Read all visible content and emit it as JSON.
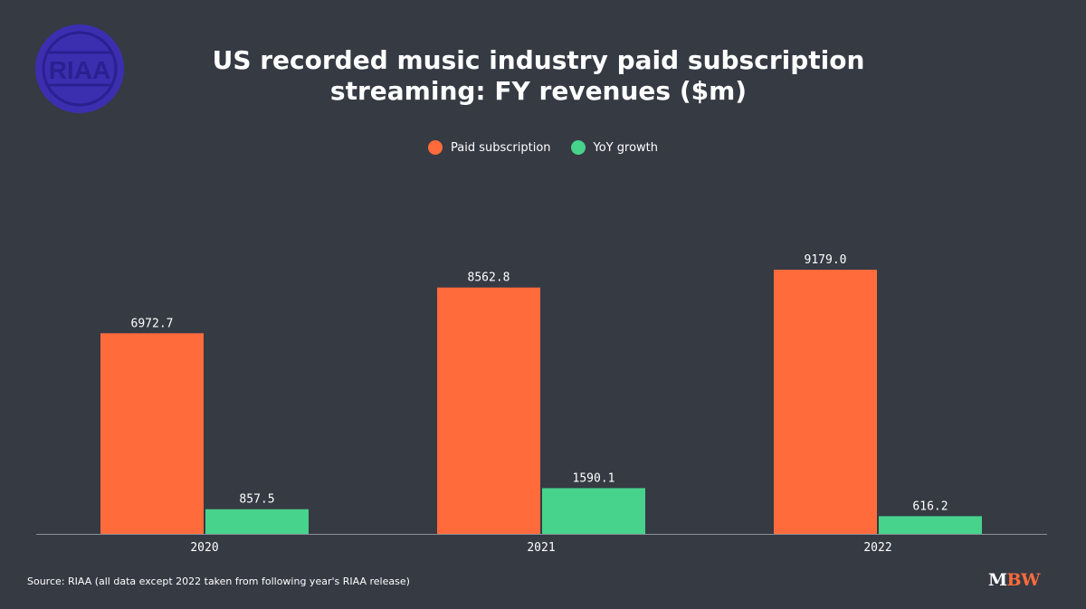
{
  "logo": {
    "text": "RIAA",
    "color": "#3b2fb0"
  },
  "title": "US recorded music industry paid subscription streaming: FY revenues ($m)",
  "chart_data": {
    "type": "bar",
    "categories": [
      "2020",
      "2021",
      "2022"
    ],
    "series": [
      {
        "name": "Paid subscription",
        "color": "#ff6b3b",
        "values": [
          6972.7,
          8562.8,
          9179.0
        ],
        "labels": [
          "6972.7",
          "8562.8",
          "9179.0"
        ]
      },
      {
        "name": "YoY growth",
        "color": "#47d38b",
        "values": [
          857.5,
          1590.1,
          616.2
        ],
        "labels": [
          "857.5",
          "1590.1",
          "616.2"
        ]
      }
    ],
    "ylim": [
      0,
      10000
    ],
    "grid": false,
    "legend": "top-center"
  },
  "source": "Source: RIAA (all data except 2022 taken from following year's RIAA release)",
  "brand": {
    "m": "M",
    "bw": "BW"
  }
}
